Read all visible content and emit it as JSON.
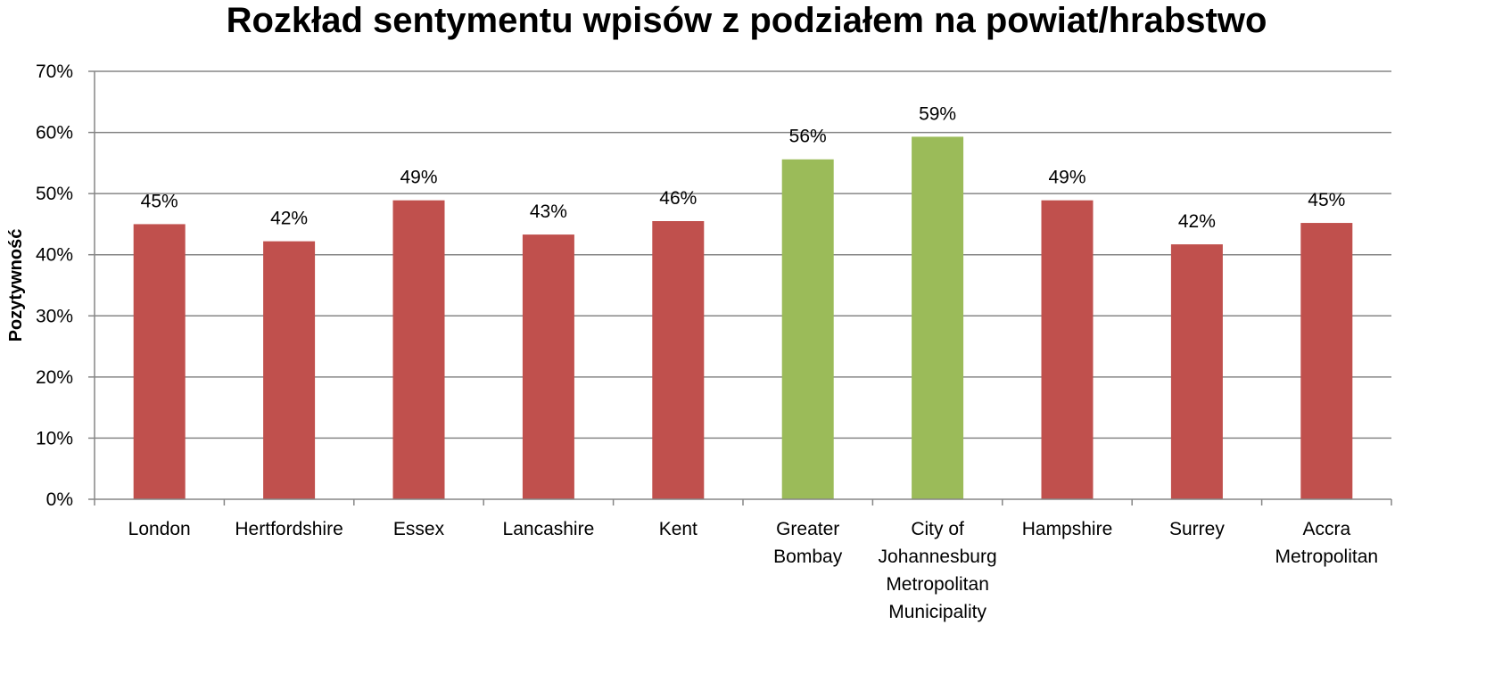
{
  "chart_data": {
    "type": "bar",
    "title": "Rozkład sentymentu wpisów z podziałem na powiat/hrabstwo",
    "xlabel": "",
    "ylabel": "Pozytywność",
    "ylim": [
      0,
      70
    ],
    "y_ticks": [
      "0%",
      "10%",
      "20%",
      "30%",
      "40%",
      "50%",
      "60%",
      "70%"
    ],
    "y_tick_values": [
      0,
      10,
      20,
      30,
      40,
      50,
      60,
      70
    ],
    "grid": true,
    "legend": "none",
    "categories": [
      [
        "London"
      ],
      [
        "Hertfordshire"
      ],
      [
        "Essex"
      ],
      [
        "Lancashire"
      ],
      [
        "Kent"
      ],
      [
        "Greater",
        "Bombay"
      ],
      [
        "City of",
        "Johannesburg",
        "Metropolitan",
        "Municipality"
      ],
      [
        "Hampshire"
      ],
      [
        "Surrey"
      ],
      [
        "Accra",
        "Metropolitan"
      ]
    ],
    "values": [
      45.0,
      42.2,
      48.9,
      43.3,
      45.5,
      55.6,
      59.3,
      48.9,
      41.7,
      45.2
    ],
    "data_labels": [
      "45%",
      "42%",
      "49%",
      "43%",
      "46%",
      "56%",
      "59%",
      "49%",
      "42%",
      "45%"
    ],
    "colors": [
      "#C0504D",
      "#C0504D",
      "#C0504D",
      "#C0504D",
      "#C0504D",
      "#9BBB59",
      "#9BBB59",
      "#C0504D",
      "#C0504D",
      "#C0504D"
    ],
    "grid_color": "#868686",
    "axis_color": "#868686"
  }
}
